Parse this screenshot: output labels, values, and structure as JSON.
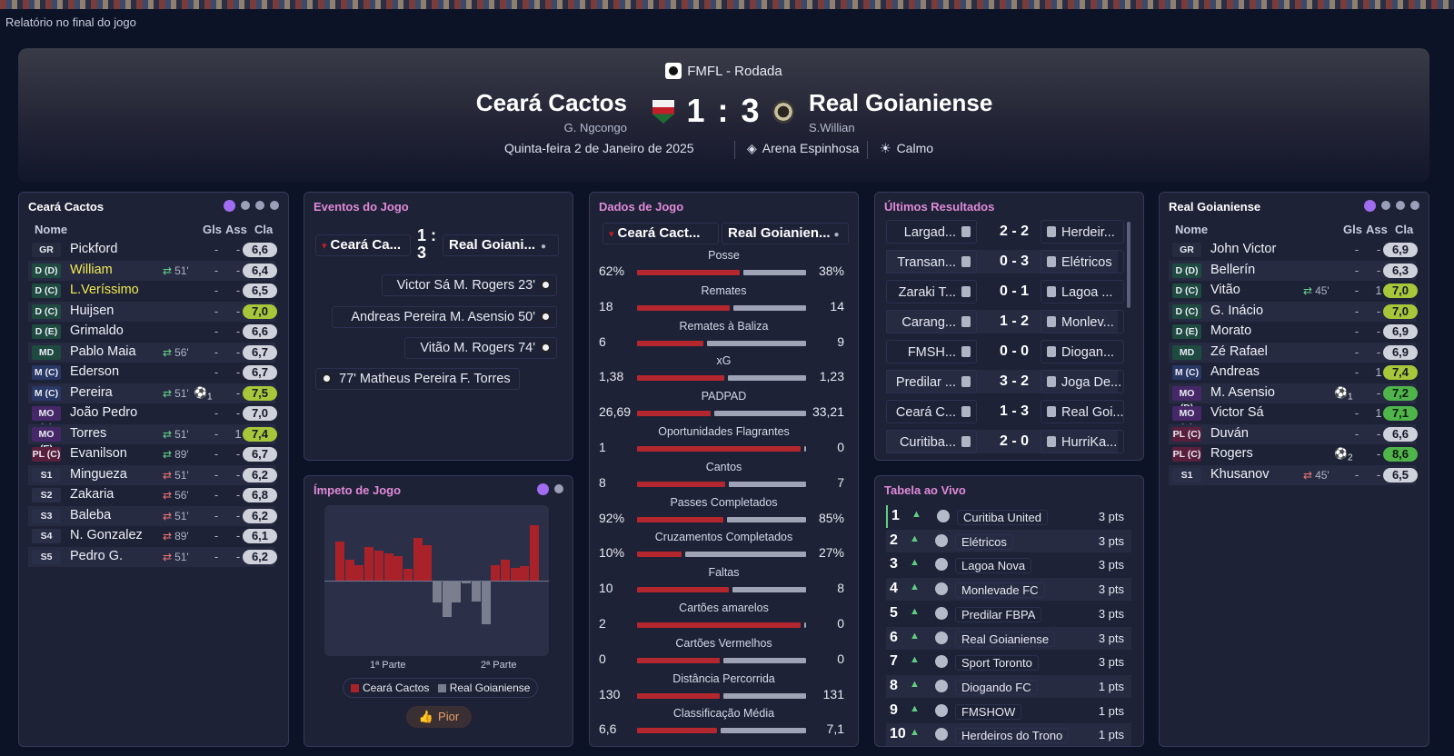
{
  "page_label": "Relatório no final do jogo",
  "header": {
    "competition": "FMFL - Rodada",
    "home": "Ceará Cactos",
    "home_scorer": "G. Ngcongo",
    "away": "Real Goianiense",
    "away_scorer": "S.Willian",
    "score": "1 : 3",
    "date": "Quinta-feira 2 de Janeiro de 2025",
    "stadium": "Arena Espinhosa",
    "weather": "Calmo"
  },
  "home_squad": {
    "title": "Ceará Cactos",
    "cols": {
      "name": "Nome",
      "gls": "Gls",
      "ass": "Ass",
      "cla": "Cla"
    },
    "players": [
      {
        "pos": "GR",
        "cls": "gr",
        "name": "Pickford",
        "min": "",
        "dir": "",
        "ball": "",
        "gls": "-",
        "ass": "-",
        "cla": "6,6",
        "g": ""
      },
      {
        "pos": "D (D)",
        "cls": "d",
        "name": "William",
        "hl": true,
        "min": "51'",
        "dir": "in",
        "ball": "",
        "gls": "-",
        "ass": "-",
        "cla": "6,4",
        "g": ""
      },
      {
        "pos": "D (C)",
        "cls": "d",
        "name": "L.Veríssimo",
        "hl": true,
        "min": "",
        "dir": "",
        "ball": "",
        "gls": "-",
        "ass": "-",
        "cla": "6,5",
        "g": ""
      },
      {
        "pos": "D (C)",
        "cls": "d",
        "name": "Huijsen",
        "min": "",
        "dir": "",
        "ball": "",
        "gls": "-",
        "ass": "-",
        "cla": "7,0",
        "g": "g1"
      },
      {
        "pos": "D (E)",
        "cls": "d",
        "name": "Grimaldo",
        "min": "",
        "dir": "",
        "ball": "",
        "gls": "-",
        "ass": "-",
        "cla": "6,6",
        "g": ""
      },
      {
        "pos": "MD",
        "cls": "d",
        "name": "Pablo Maia",
        "min": "56'",
        "dir": "in",
        "ball": "",
        "gls": "-",
        "ass": "-",
        "cla": "6,7",
        "g": ""
      },
      {
        "pos": "M (C)",
        "cls": "m",
        "name": "Ederson",
        "min": "",
        "dir": "",
        "ball": "",
        "gls": "-",
        "ass": "-",
        "cla": "6,7",
        "g": ""
      },
      {
        "pos": "M (C)",
        "cls": "m",
        "name": "Pereira",
        "min": "51'",
        "dir": "in",
        "ball": "1",
        "gls": "-",
        "ass": "-",
        "cla": "7,5",
        "g": "g1"
      },
      {
        "pos": "MO (E)",
        "cls": "mo",
        "name": "João Pedro",
        "min": "",
        "dir": "",
        "ball": "",
        "gls": "-",
        "ass": "-",
        "cla": "7,0",
        "g": ""
      },
      {
        "pos": "MO (E)",
        "cls": "mo",
        "name": "Torres",
        "min": "51'",
        "dir": "in",
        "ball": "",
        "gls": "-",
        "ass": "1",
        "cla": "7,4",
        "g": "g1"
      },
      {
        "pos": "PL (C)",
        "cls": "pl",
        "name": "Evanilson",
        "min": "89'",
        "dir": "in",
        "ball": "",
        "gls": "-",
        "ass": "-",
        "cla": "6,7",
        "g": ""
      },
      {
        "pos": "S1",
        "cls": "s",
        "name": "Mingueza",
        "min": "51'",
        "dir": "out",
        "ball": "",
        "gls": "-",
        "ass": "-",
        "cla": "6,2",
        "g": ""
      },
      {
        "pos": "S2",
        "cls": "s",
        "name": "Zakaria",
        "min": "56'",
        "dir": "out",
        "ball": "",
        "gls": "-",
        "ass": "-",
        "cla": "6,8",
        "g": ""
      },
      {
        "pos": "S3",
        "cls": "s",
        "name": "Baleba",
        "min": "51'",
        "dir": "out",
        "ball": "",
        "gls": "-",
        "ass": "-",
        "cla": "6,2",
        "g": ""
      },
      {
        "pos": "S4",
        "cls": "s",
        "name": "N. Gonzalez",
        "min": "89'",
        "dir": "out",
        "ball": "",
        "gls": "-",
        "ass": "-",
        "cla": "6,1",
        "g": ""
      },
      {
        "pos": "S5",
        "cls": "s",
        "name": "Pedro G.",
        "min": "51'",
        "dir": "out",
        "ball": "",
        "gls": "-",
        "ass": "-",
        "cla": "6,2",
        "g": ""
      }
    ]
  },
  "away_squad": {
    "title": "Real Goianiense",
    "cols": {
      "name": "Nome",
      "gls": "Gls",
      "ass": "Ass",
      "cla": "Cla"
    },
    "players": [
      {
        "pos": "GR",
        "cls": "gr",
        "name": "John Victor",
        "min": "",
        "dir": "",
        "ball": "",
        "gls": "-",
        "ass": "-",
        "cla": "6,9",
        "g": ""
      },
      {
        "pos": "D (D)",
        "cls": "d",
        "name": "Bellerín",
        "min": "",
        "dir": "",
        "ball": "",
        "gls": "-",
        "ass": "-",
        "cla": "6,3",
        "g": ""
      },
      {
        "pos": "D (C)",
        "cls": "d",
        "name": "Vitão",
        "min": "45'",
        "dir": "in",
        "ball": "",
        "gls": "-",
        "ass": "1",
        "cla": "7,0",
        "g": "g1"
      },
      {
        "pos": "D (C)",
        "cls": "d",
        "name": "G. Inácio",
        "min": "",
        "dir": "",
        "ball": "",
        "gls": "-",
        "ass": "-",
        "cla": "7,0",
        "g": "g1"
      },
      {
        "pos": "D (E)",
        "cls": "d",
        "name": "Morato",
        "min": "",
        "dir": "",
        "ball": "",
        "gls": "-",
        "ass": "-",
        "cla": "6,9",
        "g": ""
      },
      {
        "pos": "MD",
        "cls": "d",
        "name": "Zé Rafael",
        "min": "",
        "dir": "",
        "ball": "",
        "gls": "-",
        "ass": "-",
        "cla": "6,9",
        "g": ""
      },
      {
        "pos": "M (C)",
        "cls": "m",
        "name": "Andreas",
        "min": "",
        "dir": "",
        "ball": "",
        "gls": "-",
        "ass": "1",
        "cla": "7,4",
        "g": "g1"
      },
      {
        "pos": "MO (D)",
        "cls": "mo",
        "name": "M. Asensio",
        "min": "",
        "dir": "",
        "ball": "1",
        "gls": "-",
        "ass": "-",
        "cla": "7,2",
        "g": "g2"
      },
      {
        "pos": "MO (E)",
        "cls": "mo",
        "name": "Victor Sá",
        "min": "",
        "dir": "",
        "ball": "",
        "gls": "-",
        "ass": "1",
        "cla": "7,1",
        "g": "g2"
      },
      {
        "pos": "PL (C)",
        "cls": "pl",
        "name": "Duván",
        "min": "",
        "dir": "",
        "ball": "",
        "gls": "-",
        "ass": "-",
        "cla": "6,6",
        "g": ""
      },
      {
        "pos": "PL (C)",
        "cls": "pl",
        "name": "Rogers",
        "min": "",
        "dir": "",
        "ball": "2",
        "gls": "-",
        "ass": "-",
        "cla": "8,6",
        "g": "g2"
      },
      {
        "pos": "S1",
        "cls": "s",
        "name": "Khusanov",
        "min": "45'",
        "dir": "out",
        "ball": "",
        "gls": "-",
        "ass": "-",
        "cla": "6,5",
        "g": ""
      }
    ]
  },
  "events": {
    "title": "Eventos do Jogo",
    "home_short": "Ceará Ca...",
    "away_short": "Real Goiani...",
    "score_line1": "1 :",
    "score_line2": "3",
    "items": [
      {
        "text": "Victor Sá  M. Rogers 23'",
        "side": "away"
      },
      {
        "text": "Andreas Pereira  M. Asensio 50'",
        "side": "away"
      },
      {
        "text": "Vitão  M. Rogers 74'",
        "side": "away"
      },
      {
        "text": "77'  Matheus Pereira  F. Torres",
        "side": "home"
      }
    ]
  },
  "match_data": {
    "title": "Dados de Jogo",
    "home_short": "Ceará Cact...",
    "away_short": "Real Goianien...",
    "stats": [
      {
        "label": "Posse",
        "home": "62%",
        "away": "38%",
        "h": 62,
        "a": 38
      },
      {
        "label": "Remates",
        "home": "18",
        "away": "14",
        "h": 18,
        "a": 14
      },
      {
        "label": "Remates à Baliza",
        "home": "6",
        "away": "9",
        "h": 6,
        "a": 9
      },
      {
        "label": "xG",
        "home": "1,38",
        "away": "1,23",
        "h": 1.38,
        "a": 1.23
      },
      {
        "label": "PADPAD",
        "home": "26,69",
        "away": "33,21",
        "h": 26.69,
        "a": 33.21
      },
      {
        "label": "Oportunidades Flagrantes",
        "home": "1",
        "away": "0",
        "h": 1,
        "a": 0
      },
      {
        "label": "Cantos",
        "home": "8",
        "away": "7",
        "h": 8,
        "a": 7
      },
      {
        "label": "Passes Completados",
        "home": "92%",
        "away": "85%",
        "h": 92,
        "a": 85
      },
      {
        "label": "Cruzamentos Completados",
        "home": "10%",
        "away": "27%",
        "h": 10,
        "a": 27
      },
      {
        "label": "Faltas",
        "home": "10",
        "away": "8",
        "h": 10,
        "a": 8
      },
      {
        "label": "Cartões amarelos",
        "home": "2",
        "away": "0",
        "h": 2,
        "a": 0
      },
      {
        "label": "Cartões Vermelhos",
        "home": "0",
        "away": "0",
        "h": 0,
        "a": 0
      },
      {
        "label": "Distância Percorrida",
        "home": "130",
        "away": "131",
        "h": 130,
        "a": 131
      },
      {
        "label": "Classificação Média",
        "home": "6,6",
        "away": "7,1",
        "h": 6.6,
        "a": 7.1
      }
    ]
  },
  "results": {
    "title": "Últimos Resultados",
    "items": [
      {
        "home": "Largad...",
        "score": "2 - 2",
        "away": "Herdeir..."
      },
      {
        "home": "Transan...",
        "score": "0 - 3",
        "away": "Elétricos"
      },
      {
        "home": "Zaraki T...",
        "score": "0 - 1",
        "away": "Lagoa ..."
      },
      {
        "home": "Carang...",
        "score": "1 - 2",
        "away": "Monlev..."
      },
      {
        "home": "FMSH...",
        "score": "0 - 0",
        "away": "Diogan..."
      },
      {
        "home": "Predilar ...",
        "score": "3 - 2",
        "away": "Joga De..."
      },
      {
        "home": "Ceará C...",
        "score": "1 - 3",
        "away": "Real Goi..."
      },
      {
        "home": "Curitiba...",
        "score": "2 - 0",
        "away": "HurriKa..."
      }
    ]
  },
  "table": {
    "title": "Tabela ao Vivo",
    "rows": [
      {
        "pos": "1",
        "team": "Curitiba United",
        "pts": "3 pts"
      },
      {
        "pos": "2",
        "team": "Elétricos",
        "pts": "3 pts"
      },
      {
        "pos": "3",
        "team": "Lagoa Nova",
        "pts": "3 pts"
      },
      {
        "pos": "4",
        "team": "Monlevade FC",
        "pts": "3 pts"
      },
      {
        "pos": "5",
        "team": "Predilar FBPA",
        "pts": "3 pts"
      },
      {
        "pos": "6",
        "team": "Real Goianiense",
        "pts": "3 pts"
      },
      {
        "pos": "7",
        "team": "Sport Toronto",
        "pts": "3 pts"
      },
      {
        "pos": "8",
        "team": "Diogando FC",
        "pts": "1 pts"
      },
      {
        "pos": "9",
        "team": "FMSHOW",
        "pts": "1 pts"
      },
      {
        "pos": "10",
        "team": "Herdeiros do Trono",
        "pts": "1 pts"
      }
    ]
  },
  "momentum": {
    "title": "Ímpeto de Jogo",
    "half1": "1ª Parte",
    "half2": "2ª Parte",
    "legend_home": "Ceará Cactos",
    "legend_away": "Real Goianiense",
    "button": "Pior",
    "chart_data": {
      "type": "bar",
      "values": [
        0.55,
        0.3,
        0.22,
        0.48,
        0.42,
        0.38,
        0.35,
        0.17,
        0.6,
        0.5,
        -0.3,
        -0.5,
        -0.3,
        -0.03,
        -0.28,
        -0.6,
        0.22,
        0.3,
        0.18,
        0.2,
        0.78
      ],
      "ylim": [
        -1,
        1
      ]
    },
    "colors": {
      "home": "#a9222a",
      "away": "#7a7e8e"
    }
  }
}
